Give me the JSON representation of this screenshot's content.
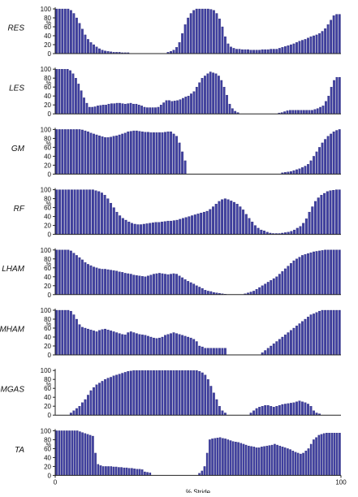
{
  "chart_data": {
    "type": "bar",
    "xlabel": "% Stride",
    "x_ticks": [
      "0",
      "100"
    ],
    "xlim": [
      0,
      100
    ],
    "y_ticks": [
      "0",
      "20",
      "40",
      "60",
      "80",
      "100"
    ],
    "ylim": [
      0,
      100
    ],
    "unit_label": "%",
    "bar_color": "#4040a0",
    "bar_edge_color": "#1e1e6e",
    "axis_color": "#222222",
    "panels": [
      {
        "name": "RES",
        "values": [
          100,
          100,
          100,
          100,
          100,
          97,
          90,
          80,
          68,
          55,
          42,
          32,
          25,
          20,
          15,
          11,
          8,
          6,
          5,
          4,
          3,
          3,
          3,
          2,
          2,
          2,
          0,
          0,
          0,
          0,
          0,
          0,
          0,
          0,
          0,
          0,
          0,
          0,
          0,
          3,
          5,
          8,
          14,
          25,
          45,
          65,
          80,
          90,
          97,
          100,
          100,
          100,
          100,
          100,
          99,
          97,
          90,
          78,
          60,
          38,
          22,
          15,
          12,
          10,
          10,
          9,
          9,
          9,
          8,
          8,
          8,
          8,
          9,
          9,
          9,
          10,
          10,
          10,
          12,
          14,
          16,
          18,
          20,
          22,
          25,
          28,
          30,
          32,
          35,
          38,
          40,
          42,
          45,
          50,
          56,
          65,
          75,
          85,
          88,
          88
        ]
      },
      {
        "name": "LES",
        "values": [
          100,
          100,
          100,
          100,
          100,
          97,
          90,
          80,
          67,
          52,
          36,
          24,
          15,
          15,
          16,
          18,
          19,
          20,
          20,
          22,
          23,
          23,
          24,
          24,
          23,
          22,
          23,
          24,
          22,
          22,
          20,
          18,
          15,
          14,
          14,
          14,
          14,
          15,
          20,
          25,
          30,
          30,
          28,
          29,
          30,
          32,
          35,
          38,
          40,
          45,
          50,
          60,
          70,
          80,
          85,
          90,
          94,
          92,
          90,
          85,
          75,
          60,
          42,
          22,
          12,
          6,
          3,
          0,
          0,
          0,
          0,
          0,
          0,
          0,
          0,
          0,
          0,
          0,
          0,
          0,
          0,
          2,
          3,
          5,
          7,
          8,
          8,
          8,
          8,
          8,
          8,
          8,
          8,
          8,
          10,
          12,
          15,
          18,
          28,
          40,
          60,
          75,
          82,
          82
        ]
      },
      {
        "name": "GM",
        "values": [
          100,
          100,
          100,
          100,
          100,
          100,
          100,
          100,
          100,
          99,
          97,
          95,
          92,
          90,
          88,
          86,
          84,
          82,
          82,
          83,
          85,
          86,
          88,
          90,
          92,
          95,
          96,
          97,
          97,
          96,
          95,
          94,
          94,
          93,
          93,
          93,
          93,
          93,
          94,
          95,
          95,
          90,
          85,
          70,
          50,
          30,
          0,
          0,
          0,
          0,
          0,
          0,
          0,
          0,
          0,
          0,
          0,
          0,
          0,
          0,
          0,
          0,
          0,
          0,
          0,
          0,
          0,
          0,
          0,
          0,
          0,
          0,
          0,
          0,
          0,
          0,
          0,
          0,
          0,
          3,
          4,
          5,
          6,
          8,
          10,
          12,
          15,
          18,
          22,
          30,
          40,
          50,
          60,
          70,
          78,
          85,
          90,
          95,
          98,
          100
        ]
      },
      {
        "name": "RF",
        "values": [
          100,
          100,
          100,
          100,
          100,
          100,
          100,
          100,
          100,
          100,
          100,
          100,
          100,
          98,
          96,
          93,
          88,
          80,
          70,
          60,
          50,
          42,
          36,
          32,
          28,
          25,
          23,
          22,
          22,
          23,
          24,
          25,
          26,
          27,
          27,
          28,
          29,
          30,
          30,
          31,
          32,
          34,
          36,
          38,
          40,
          42,
          44,
          46,
          48,
          50,
          52,
          56,
          62,
          68,
          74,
          78,
          80,
          78,
          75,
          72,
          68,
          62,
          55,
          45,
          36,
          28,
          20,
          14,
          10,
          8,
          5,
          3,
          2,
          2,
          2,
          3,
          4,
          5,
          7,
          10,
          14,
          18,
          25,
          35,
          50,
          62,
          74,
          82,
          88,
          92,
          96,
          98,
          99,
          100,
          100
        ]
      },
      {
        "name": "LHAM",
        "values": [
          100,
          100,
          100,
          100,
          100,
          98,
          93,
          88,
          83,
          78,
          72,
          68,
          65,
          62,
          60,
          58,
          57,
          57,
          56,
          55,
          54,
          53,
          51,
          50,
          48,
          47,
          46,
          44,
          43,
          42,
          41,
          40,
          42,
          44,
          46,
          47,
          48,
          47,
          46,
          45,
          46,
          47,
          46,
          42,
          38,
          34,
          30,
          27,
          24,
          20,
          17,
          14,
          10,
          8,
          7,
          5,
          4,
          3,
          2,
          1,
          0,
          0,
          0,
          0,
          0,
          0,
          2,
          4,
          6,
          8,
          12,
          16,
          20,
          24,
          28,
          32,
          36,
          40,
          46,
          52,
          58,
          64,
          70,
          76,
          80,
          84,
          88,
          90,
          92,
          94,
          96,
          97,
          98,
          99,
          100,
          100,
          100,
          100,
          100,
          100
        ]
      },
      {
        "name": "MHAM",
        "values": [
          100,
          100,
          100,
          100,
          100,
          98,
          90,
          80,
          68,
          62,
          60,
          58,
          56,
          54,
          52,
          55,
          57,
          58,
          56,
          54,
          52,
          50,
          48,
          46,
          45,
          50,
          52,
          50,
          48,
          46,
          45,
          44,
          42,
          40,
          38,
          37,
          38,
          40,
          44,
          46,
          48,
          50,
          48,
          46,
          44,
          42,
          40,
          38,
          35,
          30,
          20,
          18,
          15,
          15,
          15,
          15,
          15,
          15,
          15,
          15,
          0,
          0,
          0,
          0,
          0,
          0,
          0,
          0,
          0,
          0,
          0,
          0,
          5,
          10,
          15,
          20,
          25,
          30,
          35,
          40,
          45,
          50,
          55,
          60,
          65,
          70,
          75,
          80,
          85,
          90,
          92,
          95,
          98,
          100,
          100,
          100,
          100,
          100,
          100,
          100
        ]
      },
      {
        "name": "MGAS",
        "values": [
          0,
          0,
          0,
          0,
          0,
          5,
          10,
          15,
          20,
          28,
          35,
          45,
          55,
          62,
          68,
          72,
          76,
          80,
          83,
          85,
          88,
          90,
          92,
          94,
          96,
          98,
          99,
          100,
          100,
          100,
          100,
          100,
          100,
          100,
          100,
          100,
          100,
          100,
          100,
          100,
          100,
          100,
          100,
          100,
          100,
          100,
          100,
          100,
          100,
          100,
          98,
          95,
          90,
          80,
          65,
          50,
          35,
          20,
          10,
          5,
          0,
          0,
          0,
          0,
          0,
          0,
          0,
          0,
          5,
          10,
          15,
          18,
          20,
          22,
          22,
          20,
          18,
          20,
          22,
          24,
          25,
          26,
          27,
          28,
          30,
          32,
          30,
          28,
          25,
          20,
          10,
          5,
          3,
          0,
          0,
          0,
          0,
          0,
          0,
          0
        ]
      },
      {
        "name": "TA",
        "values": [
          100,
          100,
          100,
          100,
          100,
          100,
          100,
          100,
          100,
          98,
          96,
          94,
          92,
          90,
          88,
          50,
          25,
          22,
          20,
          20,
          20,
          20,
          19,
          19,
          18,
          18,
          17,
          17,
          16,
          16,
          15,
          14,
          14,
          13,
          8,
          7,
          6,
          0,
          0,
          0,
          0,
          0,
          0,
          0,
          0,
          0,
          0,
          0,
          0,
          0,
          0,
          0,
          0,
          0,
          0,
          5,
          10,
          20,
          50,
          80,
          82,
          83,
          84,
          85,
          83,
          82,
          80,
          78,
          76,
          75,
          74,
          72,
          70,
          68,
          66,
          65,
          64,
          62,
          62,
          64,
          65,
          66,
          67,
          68,
          70,
          68,
          66,
          64,
          62,
          60,
          58,
          55,
          52,
          50,
          48,
          50,
          55,
          60,
          70,
          80,
          85,
          90,
          92,
          94,
          95,
          95,
          95,
          95,
          95,
          95
        ]
      }
    ]
  }
}
